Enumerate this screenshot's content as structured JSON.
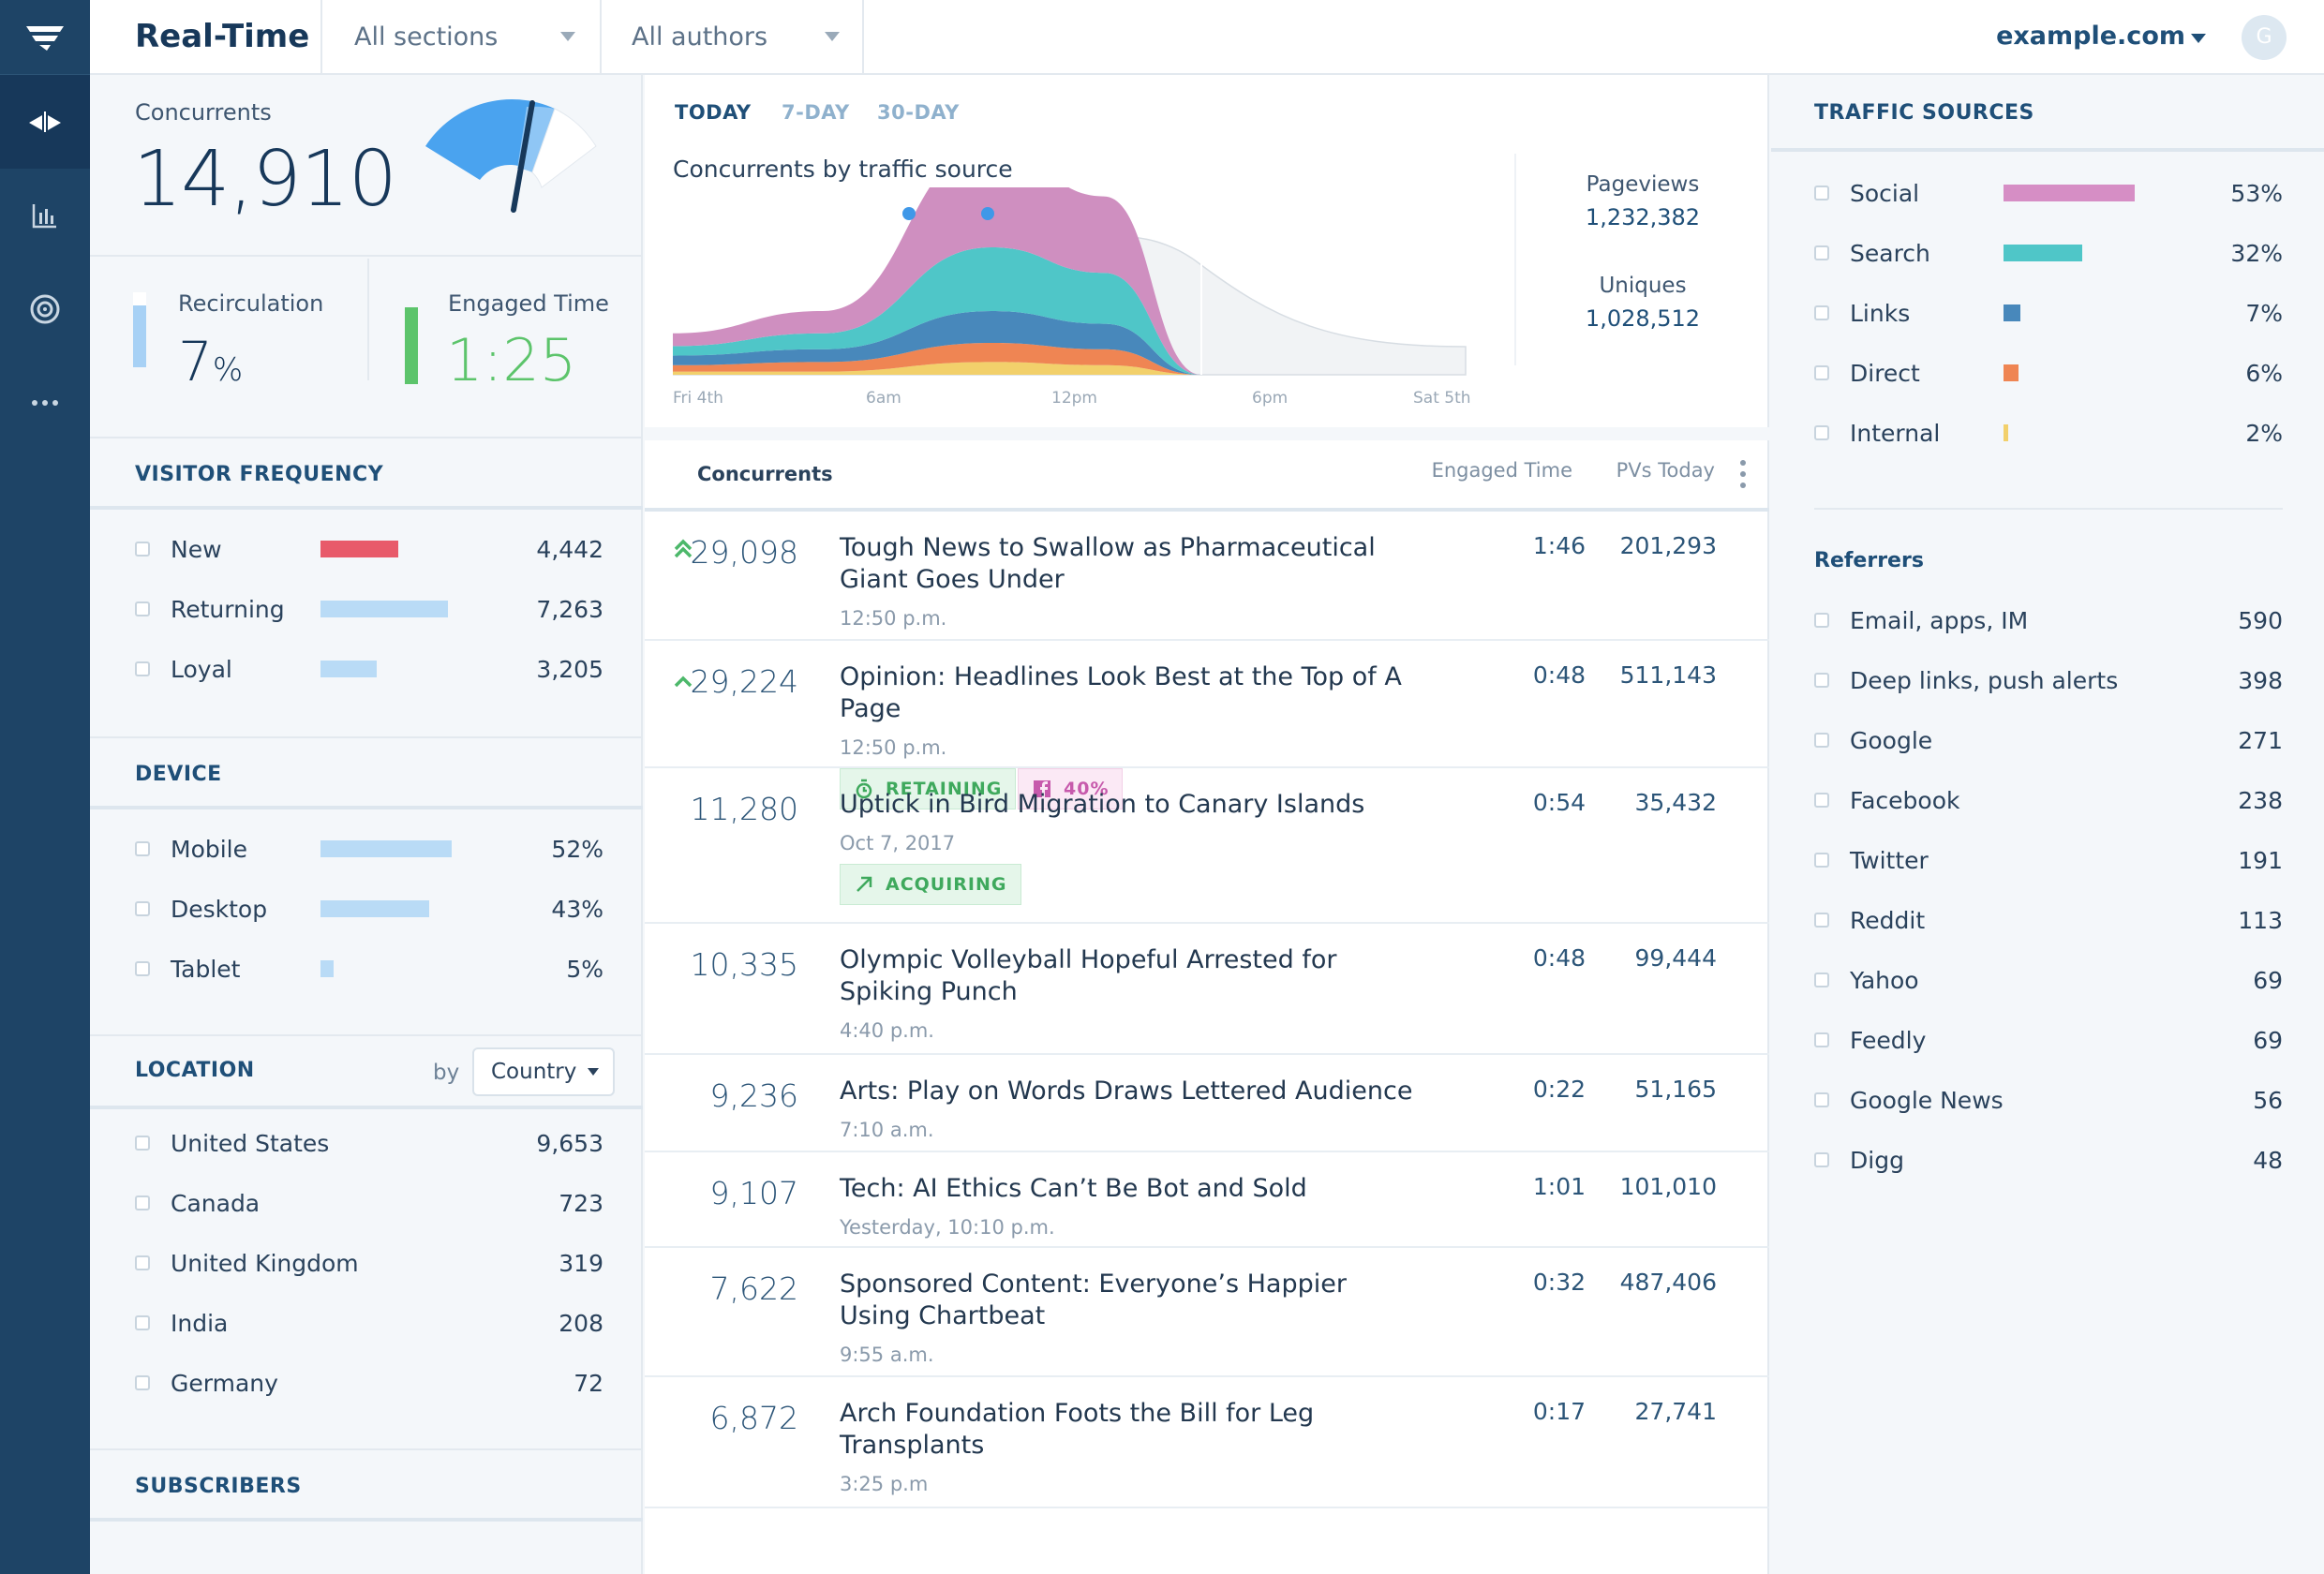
{
  "app": {
    "title": "Real-Time",
    "sections": "All sections",
    "authors": "All authors",
    "domain": "example.com",
    "avatar": "G"
  },
  "concurrents": {
    "label": "Concurrents",
    "value": "14,910"
  },
  "recirculation": {
    "label": "Recirculation",
    "value": "7",
    "unit": "%"
  },
  "engaged": {
    "label": "Engaged Time",
    "value": "1:25"
  },
  "visitor_frequency": {
    "title": "VISITOR FREQUENCY",
    "items": [
      {
        "label": "New",
        "value": "4,442",
        "share": 0.61
      },
      {
        "label": "Returning",
        "value": "7,263",
        "share": 1.0
      },
      {
        "label": "Loyal",
        "value": "3,205",
        "share": 0.44
      }
    ]
  },
  "device": {
    "title": "DEVICE",
    "items": [
      {
        "label": "Mobile",
        "value": "52%",
        "share": 0.52
      },
      {
        "label": "Desktop",
        "value": "43%",
        "share": 0.43
      },
      {
        "label": "Tablet",
        "value": "5%",
        "share": 0.05
      }
    ]
  },
  "location": {
    "title": "LOCATION",
    "by": "by",
    "select": "Country",
    "items": [
      {
        "label": "United States",
        "value": "9,653"
      },
      {
        "label": "Canada",
        "value": "723"
      },
      {
        "label": "United Kingdom",
        "value": "319"
      },
      {
        "label": "India",
        "value": "208"
      },
      {
        "label": "Germany",
        "value": "72"
      }
    ]
  },
  "subscribers": {
    "title": "SUBSCRIBERS"
  },
  "chart": {
    "tabs": [
      "TODAY",
      "7-DAY",
      "30-DAY"
    ],
    "title": "Concurrents by traffic source",
    "xticks": [
      "Fri 4th",
      "6am",
      "12pm",
      "6pm",
      "Sat 5th"
    ],
    "pageviews_label": "Pageviews",
    "pageviews": "1,232,382",
    "uniques_label": "Uniques",
    "uniques": "1,028,512"
  },
  "chart_data": {
    "type": "area",
    "title": "Concurrents by traffic source",
    "x": [
      "Fri 4th",
      "6am",
      "12pm",
      "6pm",
      "Sat 5th"
    ],
    "series": [
      {
        "name": "Internal",
        "color": "#f2d06b",
        "values": [
          1,
          1,
          4,
          3,
          0
        ]
      },
      {
        "name": "Direct",
        "color": "#ef8553",
        "values": [
          2,
          3,
          6,
          5,
          0
        ]
      },
      {
        "name": "Links",
        "color": "#4888bb",
        "values": [
          3,
          4,
          10,
          8,
          0
        ]
      },
      {
        "name": "Search",
        "color": "#4fc6c8",
        "values": [
          3,
          5,
          20,
          16,
          0
        ]
      },
      {
        "name": "Social",
        "color": "#cf8fc0",
        "values": [
          4,
          7,
          32,
          24,
          0
        ]
      }
    ]
  },
  "table": {
    "col_concurrents": "Concurrents",
    "col_engaged": "Engaged Time",
    "col_pvs": "PVs Today",
    "stories": [
      {
        "concurrents": "29,098",
        "title": "Tough News to Swallow as Pharmaceutical Giant Goes Under",
        "time": "12:50 p.m.",
        "engaged": "1:46",
        "pvs": "201,293",
        "trend": "double-up"
      },
      {
        "concurrents": "29,224",
        "title": "Opinion: Headlines Look Best at the Top of A Page",
        "time": "12:50 p.m.",
        "engaged": "0:48",
        "pvs": "511,143",
        "trend": "up",
        "badges": [
          "RETAINING",
          "40%"
        ]
      },
      {
        "concurrents": "11,280",
        "title": "Uptick in Bird Migration to Canary Islands",
        "time": "Oct 7, 2017",
        "engaged": "0:54",
        "pvs": "35,432",
        "badges": [
          "ACQUIRING"
        ]
      },
      {
        "concurrents": "10,335",
        "title": "Olympic Volleyball Hopeful Arrested for Spiking Punch",
        "time": "4:40 p.m.",
        "engaged": "0:48",
        "pvs": "99,444"
      },
      {
        "concurrents": "9,236",
        "title": "Arts: Play on Words Draws Lettered Audience",
        "time": "7:10 a.m.",
        "engaged": "0:22",
        "pvs": "51,165"
      },
      {
        "concurrents": "9,107",
        "title": "Tech: AI Ethics Can’t Be Bot and Sold",
        "time": "Yesterday, 10:10 p.m.",
        "engaged": "1:01",
        "pvs": "101,010"
      },
      {
        "concurrents": "7,622",
        "title": "Sponsored Content: Everyone’s Happier Using Chartbeat",
        "time": "9:55 a.m.",
        "engaged": "0:32",
        "pvs": "487,406"
      },
      {
        "concurrents": "6,872",
        "title": "Arch Foundation Foots the Bill for Leg Transplants",
        "time": "3:25 p.m",
        "engaged": "0:17",
        "pvs": "27,741"
      }
    ]
  },
  "traffic_sources": {
    "title": "TRAFFIC SOURCES",
    "items": [
      {
        "label": "Social",
        "value": "53%",
        "share": 0.53,
        "color": "#d68ec5"
      },
      {
        "label": "Search",
        "value": "32%",
        "share": 0.32,
        "color": "#4fc6c8"
      },
      {
        "label": "Links",
        "value": "7%",
        "share": 0.07,
        "color": "#4888bb"
      },
      {
        "label": "Direct",
        "value": "6%",
        "share": 0.06,
        "color": "#ef8553"
      },
      {
        "label": "Internal",
        "value": "2%",
        "share": 0.02,
        "color": "#f2d06b"
      }
    ]
  },
  "referrers": {
    "title": "Referrers",
    "items": [
      {
        "label": "Email, apps, IM",
        "value": "590"
      },
      {
        "label": "Deep links, push alerts",
        "value": "398"
      },
      {
        "label": "Google",
        "value": "271"
      },
      {
        "label": "Facebook",
        "value": "238"
      },
      {
        "label": "Twitter",
        "value": "191"
      },
      {
        "label": "Reddit",
        "value": "113"
      },
      {
        "label": "Yahoo",
        "value": "69"
      },
      {
        "label": "Feedly",
        "value": "69"
      },
      {
        "label": "Google News",
        "value": "56"
      },
      {
        "label": "Digg",
        "value": "48"
      }
    ]
  }
}
